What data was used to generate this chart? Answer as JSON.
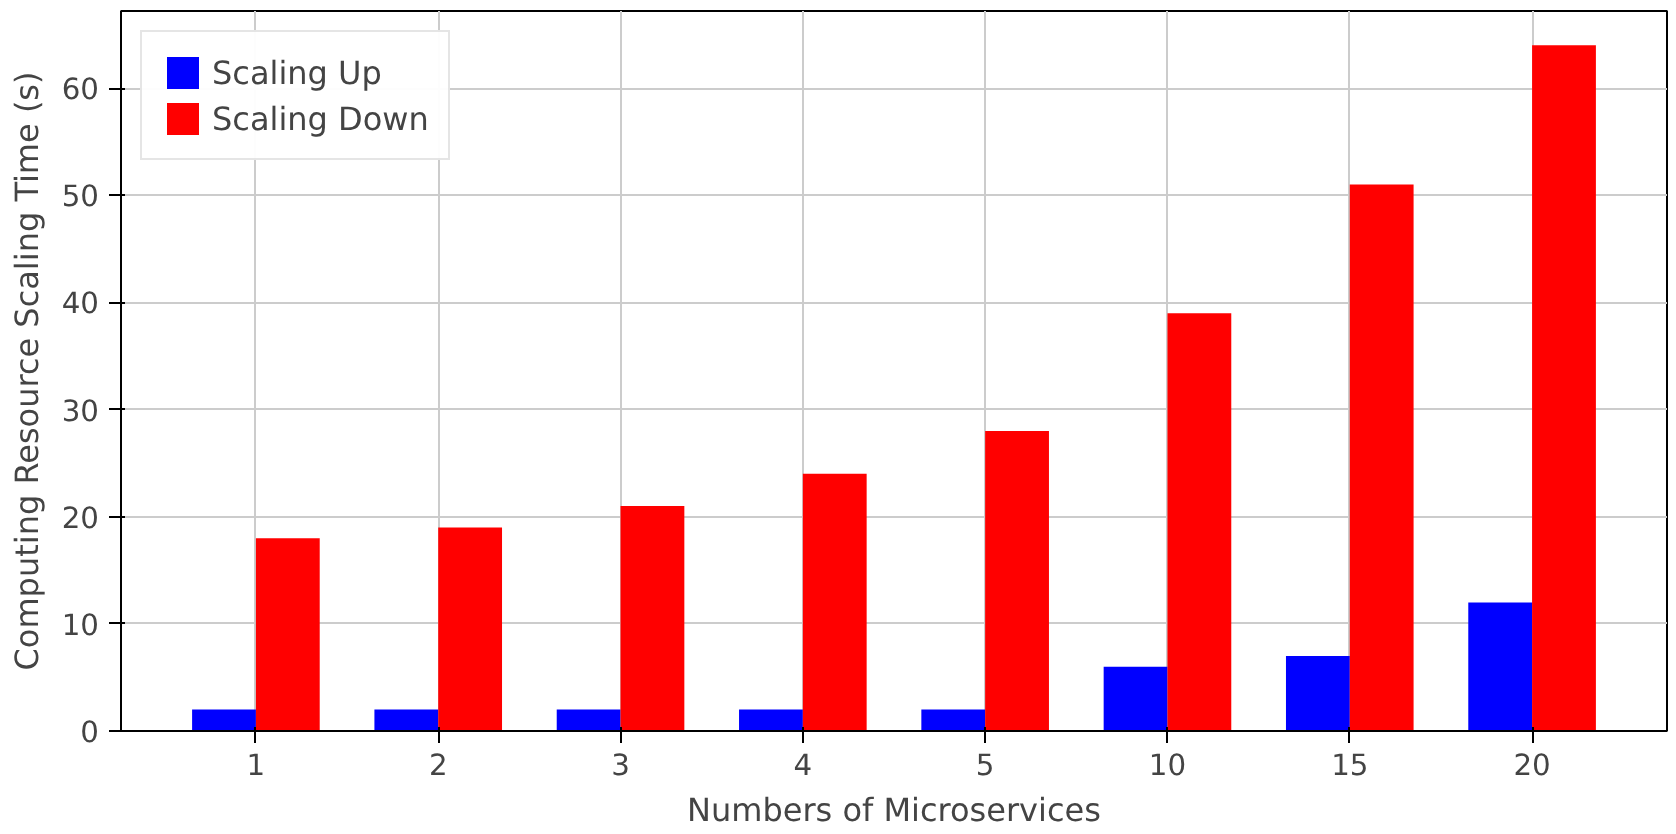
{
  "chart_data": {
    "type": "bar",
    "xlabel": "Numbers of Microservices",
    "ylabel": "Computing Resource Scaling Time (s)",
    "categories": [
      "1",
      "2",
      "3",
      "4",
      "5",
      "10",
      "15",
      "20"
    ],
    "series": [
      {
        "name": "Scaling Up",
        "color": "#0000ff",
        "values": [
          2,
          2,
          2,
          2,
          2,
          6,
          7,
          12
        ]
      },
      {
        "name": "Scaling Down",
        "color": "#ff0000",
        "values": [
          18,
          19,
          21,
          24,
          28,
          39,
          51,
          64
        ]
      }
    ],
    "ylim": [
      0,
      67.2
    ],
    "yticks": [
      0,
      10,
      20,
      30,
      40,
      50,
      60
    ],
    "grid": true,
    "legend": "top left"
  }
}
